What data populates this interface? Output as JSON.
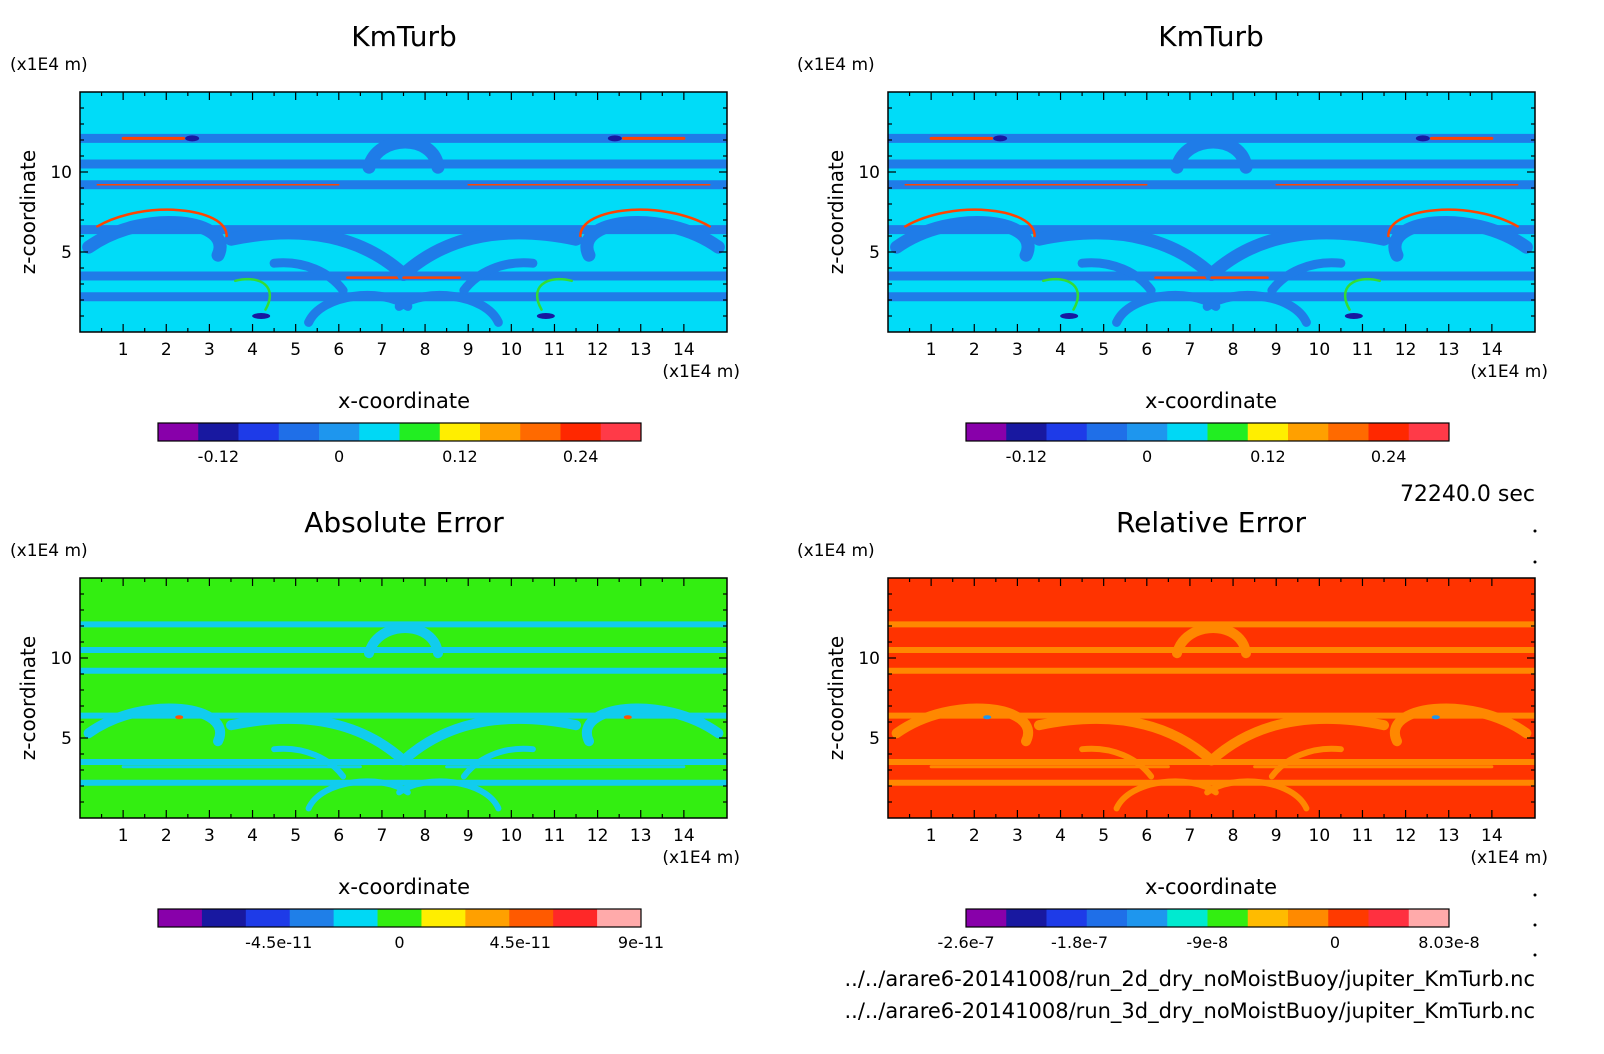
{
  "colors": {
    "kmturb_bins": [
      "#8800aa",
      "#1818a0",
      "#1e3be8",
      "#1f6fe8",
      "#1e96ee",
      "#00d8f5",
      "#22ee22",
      "#ffee00",
      "#ffa000",
      "#ff6a00",
      "#ff2800",
      "#ff3a48"
    ],
    "abs_bins": [
      "#8800aa",
      "#1818a0",
      "#1e3be8",
      "#1f7fe8",
      "#00d8f5",
      "#33ee11",
      "#ffee00",
      "#ffa000",
      "#ff5a00",
      "#ff2828",
      "#ffaaaa"
    ],
    "rel_bins": [
      "#8800aa",
      "#1818a0",
      "#1e3be8",
      "#1f6fe8",
      "#1e96ee",
      "#00ead0",
      "#33ee11",
      "#ffbb00",
      "#ff8a00",
      "#ff3a00",
      "#ff3040",
      "#ffaaaa"
    ],
    "kmturb_field": {
      "background": "#00dcf8",
      "band": "#1f7ce8",
      "green": "#33dd33",
      "accent": "#ff4400",
      "dark": "#1818a0"
    },
    "abs_field": {
      "background": "#33ee11",
      "band": "#11ccee",
      "accent": "#ff5500"
    },
    "rel_field": {
      "background": "#ff3300",
      "band": "#ff8800",
      "accent": "#1e96ee"
    }
  },
  "unit_label": "(x1E4 m)",
  "x_label": "x-coordinate",
  "y_label": "z-coordinate",
  "time_label": "72240.0 sec",
  "file_labels": [
    "../../arare6-20141008/run_2d_dry_noMoistBuoy/jupiter_KmTurb.nc",
    "../../arare6-20141008/run_3d_dry_noMoistBuoy/jupiter_KmTurb.nc"
  ],
  "chart_data": [
    {
      "type": "heatmap",
      "title": "KmTurb",
      "xlim": [
        0,
        15
      ],
      "ylim": [
        0,
        15
      ],
      "x_ticks": [
        "1",
        "2",
        "3",
        "4",
        "5",
        "6",
        "7",
        "8",
        "9",
        "10",
        "11",
        "12",
        "13",
        "14"
      ],
      "y_ticks": [
        "5",
        "10"
      ],
      "colorbar_ticks": [
        "-0.12",
        "0",
        "0.12",
        "0.24"
      ],
      "colorbar_tick_values": [
        -0.12,
        0,
        0.12,
        0.24
      ],
      "colorbar_range": [
        -0.18,
        0.3
      ]
    },
    {
      "type": "heatmap",
      "title": "KmTurb",
      "xlim": [
        0,
        15
      ],
      "ylim": [
        0,
        15
      ],
      "x_ticks": [
        "1",
        "2",
        "3",
        "4",
        "5",
        "6",
        "7",
        "8",
        "9",
        "10",
        "11",
        "12",
        "13",
        "14"
      ],
      "y_ticks": [
        "5",
        "10"
      ],
      "colorbar_ticks": [
        "-0.12",
        "0",
        "0.12",
        "0.24"
      ],
      "colorbar_tick_values": [
        -0.12,
        0,
        0.12,
        0.24
      ],
      "colorbar_range": [
        -0.18,
        0.3
      ]
    },
    {
      "type": "heatmap",
      "title": "Absolute Error",
      "xlim": [
        0,
        15
      ],
      "ylim": [
        0,
        15
      ],
      "x_ticks": [
        "1",
        "2",
        "3",
        "4",
        "5",
        "6",
        "7",
        "8",
        "9",
        "10",
        "11",
        "12",
        "13",
        "14"
      ],
      "y_ticks": [
        "5",
        "10"
      ],
      "colorbar_ticks": [
        "-4.5e-11",
        "0",
        "4.5e-11",
        "9e-11"
      ],
      "colorbar_tick_values": [
        -4.5e-11,
        0,
        4.5e-11,
        9e-11
      ],
      "colorbar_range": [
        -9e-11,
        9e-11
      ]
    },
    {
      "type": "heatmap",
      "title": "Relative Error",
      "xlim": [
        0,
        15
      ],
      "ylim": [
        0,
        15
      ],
      "x_ticks": [
        "1",
        "2",
        "3",
        "4",
        "5",
        "6",
        "7",
        "8",
        "9",
        "10",
        "11",
        "12",
        "13",
        "14"
      ],
      "y_ticks": [
        "5",
        "10"
      ],
      "colorbar_ticks": [
        "-2.6e-7",
        "-1.8e-7",
        "-9e-8",
        "0",
        "8.03e-8"
      ],
      "colorbar_tick_values": [
        -2.6e-07,
        -1.8e-07,
        -9e-08,
        0,
        8.03e-08
      ],
      "colorbar_range": [
        -2.6e-07,
        8.03e-08
      ]
    }
  ]
}
